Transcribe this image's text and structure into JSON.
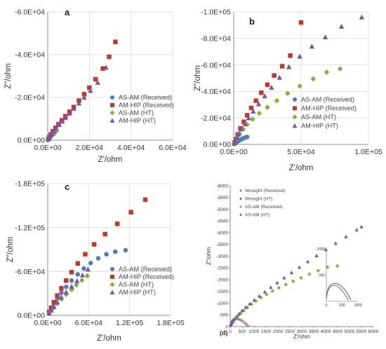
{
  "panels": [
    {
      "panel_label": "a",
      "type": "scatter",
      "xlabel": "Z'/ohm",
      "ylabel": "Z\"/ohm",
      "xlim": [
        0,
        60000
      ],
      "ylim": [
        0,
        -60000
      ],
      "xticks": [
        0,
        20000,
        40000,
        60000
      ],
      "yticks": [
        0,
        -20000,
        -40000,
        -60000
      ],
      "xtick_labels": [
        "0.0E+00",
        "2.0E+04",
        "4.0E+04",
        "6.0E+04"
      ],
      "ytick_labels": [
        "0.0E+00",
        "-2.0E+04",
        "-4.0E+04",
        "-6.0E+04"
      ],
      "grid": true,
      "legend_position": "right",
      "series": [
        {
          "name": "AS-AM (Received)",
          "color": "#4a7ebb",
          "marker": "circle",
          "x": [
            100,
            300,
            600,
            1000,
            1500,
            2000,
            2600,
            3200
          ],
          "y": [
            -100,
            -400,
            -800,
            -1300,
            -1800,
            -2300,
            -2800,
            -3300
          ]
        },
        {
          "name": "AM-HIP (Received)",
          "color": "#c0392b",
          "marker": "square",
          "x": [
            300,
            800,
            1500,
            2500,
            3800,
            5200,
            6800,
            8500,
            10500,
            12500,
            15000,
            17500,
            20000,
            23000,
            26500,
            29500,
            32500
          ],
          "y": [
            -600,
            -1500,
            -2700,
            -4200,
            -5800,
            -7500,
            -9300,
            -11200,
            -13300,
            -15500,
            -18500,
            -21500,
            -24500,
            -28500,
            -33500,
            -39000,
            -46000
          ]
        },
        {
          "name": "AS-AM (HT)",
          "color": "#7fb236",
          "marker": "diamond",
          "x": [
            200,
            500,
            900,
            1400,
            2000,
            2700,
            3500,
            4300
          ],
          "y": [
            -200,
            -600,
            -1100,
            -1700,
            -2300,
            -3000,
            -3700,
            -4400
          ]
        },
        {
          "name": "AM-HIP (HT)",
          "color": "#7b52ab",
          "marker": "triangle",
          "x": [
            300,
            700,
            1300,
            2000,
            3000,
            4000,
            5500,
            7000,
            8500,
            10500,
            12500,
            15000,
            17500,
            20500,
            24000,
            28000
          ],
          "y": [
            -500,
            -1200,
            -2100,
            -3000,
            -4300,
            -5600,
            -7200,
            -8800,
            -10500,
            -12600,
            -14800,
            -17300,
            -20000,
            -23200,
            -27000,
            -34000
          ]
        }
      ]
    },
    {
      "panel_label": "b",
      "type": "scatter",
      "xlabel": "Z'/ohm",
      "ylabel": "Z\"/ohm",
      "xlim": [
        0,
        100000
      ],
      "ylim": [
        0,
        -100000
      ],
      "xticks": [
        0,
        50000,
        100000
      ],
      "yticks": [
        0,
        -20000,
        -40000,
        -60000,
        -80000,
        -100000
      ],
      "xtick_labels": [
        "0.0E+00",
        "5.0E+04",
        "1.0E+05"
      ],
      "ytick_labels": [
        "0.0E+00",
        "-2.0E+04",
        "-4.0E+04",
        "-6.0E+04",
        "-8.0E+04",
        "-1.0E+05"
      ],
      "grid": true,
      "legend_position": "right",
      "series": [
        {
          "name": "AS-AM (Received)",
          "color": "#4a7ebb",
          "marker": "circle",
          "x": [
            300,
            700,
            1200,
            1800,
            2500,
            3300,
            4200,
            5200,
            6300,
            7500,
            8800,
            10000
          ],
          "y": [
            -200,
            -500,
            -900,
            -1400,
            -1900,
            -2500,
            -3000,
            -3600,
            -4200,
            -4800,
            -5200,
            -5600
          ]
        },
        {
          "name": "AM-HIP (Received)",
          "color": "#c0392b",
          "marker": "square",
          "x": [
            600,
            1500,
            3000,
            5000,
            7500,
            10000,
            13000,
            16500,
            20500,
            25000,
            30000,
            36000,
            42000,
            50000
          ],
          "y": [
            -1500,
            -4000,
            -7500,
            -12000,
            -17000,
            -22000,
            -27500,
            -33000,
            -39000,
            -45000,
            -52000,
            -59000,
            -67000,
            -92000
          ]
        },
        {
          "name": "AS-AM (HT)",
          "color": "#7fb236",
          "marker": "diamond",
          "x": [
            400,
            1200,
            2500,
            4500,
            7000,
            10000,
            14000,
            19000,
            25000,
            32000,
            40000,
            49000,
            59000,
            69000,
            79000
          ],
          "y": [
            -800,
            -2500,
            -5000,
            -8000,
            -11500,
            -15000,
            -19000,
            -23500,
            -28000,
            -33000,
            -38500,
            -44000,
            -49500,
            -54500,
            -57000
          ]
        },
        {
          "name": "AM-HIP (HT)",
          "color": "#7b52ab",
          "marker": "triangle",
          "x": [
            500,
            1200,
            2300,
            3800,
            5800,
            8300,
            11000,
            14500,
            18500,
            23000,
            28000,
            34000,
            41000,
            49000,
            58000,
            68000,
            80000,
            95000
          ],
          "y": [
            -1000,
            -2700,
            -5000,
            -8000,
            -11500,
            -15500,
            -20000,
            -25000,
            -30500,
            -36500,
            -43000,
            -50500,
            -58500,
            -66500,
            -74000,
            -81000,
            -89000,
            -96000
          ]
        }
      ]
    },
    {
      "panel_label": "c",
      "type": "scatter",
      "xlabel": "Z'/ohm",
      "ylabel": "Z\"/ohm",
      "xlim": [
        0,
        180000
      ],
      "ylim": [
        0,
        -180000
      ],
      "xticks": [
        0,
        60000,
        120000,
        180000
      ],
      "yticks": [
        0,
        -60000,
        -120000,
        -180000
      ],
      "xtick_labels": [
        "0.0E+00",
        "6.0E+04",
        "1.2E+05",
        "1.8E+05"
      ],
      "ytick_labels": [
        "0.0E+00",
        "-6.0E+04",
        "-1.2E+05",
        "-1.8E+05"
      ],
      "grid": true,
      "legend_position": "right",
      "series": [
        {
          "name": "AS-AM (Received)",
          "color": "#4a7ebb",
          "marker": "circle",
          "x": [
            2000,
            5000,
            9000,
            14000,
            20000,
            27000,
            35000,
            44000,
            53000,
            63000,
            74000,
            86000,
            99000,
            114000
          ],
          "y": [
            -4000,
            -9500,
            -16000,
            -23000,
            -31000,
            -39000,
            -47500,
            -56000,
            -64000,
            -71500,
            -78000,
            -83500,
            -87000,
            -89000
          ]
        },
        {
          "name": "AM-HIP (Received)",
          "color": "#c0392b",
          "marker": "square",
          "x": [
            2000,
            5000,
            9000,
            14000,
            20000,
            27000,
            35000,
            44000,
            55000,
            68000,
            84000,
            102000,
            122000,
            143000
          ],
          "y": [
            -4500,
            -10500,
            -18000,
            -27000,
            -37000,
            -47500,
            -59000,
            -71000,
            -83500,
            -97000,
            -111000,
            -125000,
            -141000,
            -158000
          ]
        },
        {
          "name": "AS-AM (HT)",
          "color": "#7fb236",
          "marker": "diamond",
          "x": [
            2000,
            5000,
            9000,
            14000,
            20000,
            27000,
            35000,
            42000,
            50000,
            58000
          ],
          "y": [
            -2500,
            -6000,
            -10500,
            -16000,
            -22000,
            -28500,
            -35000,
            -41500,
            -48000,
            -54000
          ]
        },
        {
          "name": "AM-HIP (HT)",
          "color": "#7b52ab",
          "marker": "triangle",
          "x": [
            2000,
            5000,
            9000,
            14000,
            20000,
            27000,
            35000,
            43000,
            51000,
            59000
          ],
          "y": [
            -2800,
            -7000,
            -12000,
            -18000,
            -25000,
            -32000,
            -39500,
            -47000,
            -55000,
            -63000
          ]
        }
      ]
    },
    {
      "panel_label": "(d)",
      "type": "scatter",
      "xlabel": "Z'/ohm",
      "ylabel": "Z\"/ohm",
      "xlim": [
        0,
        6000
      ],
      "ylim": [
        0,
        -6000
      ],
      "xticks": [
        0,
        500,
        1000,
        1500,
        2000,
        2500,
        3000,
        3500,
        4000,
        4500,
        5000,
        5500,
        6000
      ],
      "yticks": [
        0,
        -500,
        -1000,
        -1500,
        -2000,
        -2500,
        -3000,
        -3500,
        -4000,
        -4500,
        -5000,
        -5500,
        -6000
      ],
      "xtick_labels": [
        "0",
        "500",
        "1000",
        "1500",
        "2000",
        "2500",
        "3000",
        "3500",
        "4000",
        "4500",
        "5000",
        "5500",
        "6000"
      ],
      "ytick_labels": [
        "0",
        "-500",
        "-1000",
        "-1500",
        "-2000",
        "-2500",
        "-3000",
        "-3500",
        "-4000",
        "-4500",
        "-5000",
        "-5500",
        "-6000"
      ],
      "grid": false,
      "legend_position": "top-left",
      "series": [
        {
          "name": "Wrought (Received)",
          "color": "#4a7ebb",
          "marker": "dot",
          "x": [
            5,
            20,
            50,
            100,
            160,
            230,
            300,
            370,
            440,
            510,
            580,
            640,
            700
          ],
          "y": [
            -60,
            -130,
            -200,
            -255,
            -290,
            -305,
            -300,
            -280,
            -245,
            -195,
            -140,
            -80,
            -20
          ]
        },
        {
          "name": "Wrought (HT)",
          "color": "#c0392b",
          "marker": "dot",
          "x": [
            5,
            20,
            50,
            100,
            170,
            250,
            330,
            410,
            490,
            570,
            650,
            720,
            780
          ],
          "y": [
            -70,
            -150,
            -230,
            -290,
            -325,
            -340,
            -335,
            -315,
            -280,
            -230,
            -165,
            -95,
            -25
          ]
        },
        {
          "name": "AS-AM (Received)",
          "color": "#7fb236",
          "marker": "diamond",
          "x": [
            20,
            50,
            100,
            160,
            240,
            330,
            440,
            570,
            720,
            890,
            1080,
            1290,
            1520,
            1770,
            2040,
            2330,
            2640,
            2970,
            3320,
            3690,
            4080,
            4490
          ],
          "y": [
            -50,
            -110,
            -180,
            -260,
            -350,
            -450,
            -560,
            -680,
            -810,
            -950,
            -1090,
            -1230,
            -1370,
            -1510,
            -1650,
            -1790,
            -1930,
            -2080,
            -2230,
            -2380,
            -2530,
            -2580
          ]
        },
        {
          "name": "AS-AM (HT)",
          "color": "#7b52ab",
          "marker": "triangle",
          "x": [
            20,
            50,
            100,
            170,
            260,
            370,
            500,
            650,
            820,
            1010,
            1220,
            1450,
            1700,
            1970,
            2260,
            2570,
            2900,
            3250,
            3620,
            4010,
            4420,
            4850,
            5300,
            5500
          ],
          "y": [
            -60,
            -130,
            -220,
            -320,
            -430,
            -550,
            -680,
            -820,
            -970,
            -1130,
            -1300,
            -1480,
            -1670,
            -1870,
            -2080,
            -2300,
            -2530,
            -2770,
            -3020,
            -3280,
            -3550,
            -3830,
            -4120,
            -4250
          ]
        }
      ],
      "inset": {
        "xlim": [
          0,
          1000
        ],
        "ylim": [
          0,
          -1000
        ],
        "xtick_labels": [
          "0",
          "500",
          "1000"
        ],
        "ytick_labels": [
          "-500",
          "-1000"
        ]
      }
    }
  ]
}
